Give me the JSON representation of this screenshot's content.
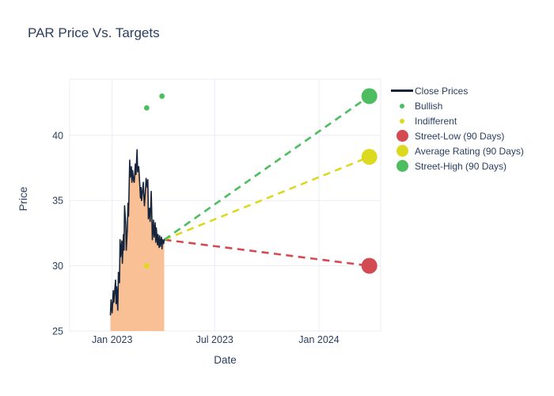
{
  "title": "PAR Price Vs. Targets",
  "colors": {
    "text": "#2a3f5f",
    "grid": "#e9edf5",
    "close_line": "#16243c",
    "close_fill": "#f9c096",
    "bullish": "#4dbd5f",
    "indifferent": "#dcd921",
    "street_low": "#d24a52",
    "average_rating": "#dcd921",
    "street_high": "#4dbd5f",
    "background": "#ffffff"
  },
  "legend": {
    "items": [
      {
        "label": "Close Prices",
        "swatch": "line",
        "color": "#16243c"
      },
      {
        "label": "Bullish",
        "swatch": "dot-small",
        "color": "#4dbd5f"
      },
      {
        "label": "Indifferent",
        "swatch": "dot-small",
        "color": "#dcd921"
      },
      {
        "label": "Street-Low (90 Days)",
        "swatch": "dot-large",
        "color": "#d24a52"
      },
      {
        "label": "Average Rating (90 Days)",
        "swatch": "dot-large",
        "color": "#dcd921"
      },
      {
        "label": "Street-High (90 Days)",
        "swatch": "dot-large",
        "color": "#4dbd5f"
      }
    ]
  },
  "chart_data": {
    "type": "line",
    "title": "PAR Price Vs. Targets",
    "xlabel": "Date",
    "ylabel": "Price",
    "grid": true,
    "legend_position": "right",
    "x_domain": [
      "2022-10-18",
      "2024-04-19"
    ],
    "y_domain": [
      25,
      44.3
    ],
    "y_ticks": [
      25,
      30,
      35,
      40
    ],
    "x_ticks": [
      {
        "date": "2023-01-01",
        "label": "Jan 2023"
      },
      {
        "date": "2023-07-01",
        "label": "Jul 2023"
      },
      {
        "date": "2024-01-01",
        "label": "Jan 2024"
      }
    ],
    "close_prices": {
      "name": "Close Prices",
      "dates": [
        "2022-12-29",
        "2022-12-30",
        "2023-01-01",
        "2023-01-03",
        "2023-01-04",
        "2023-01-07",
        "2023-01-08",
        "2023-01-09",
        "2023-01-11",
        "2023-01-12",
        "2023-01-14",
        "2023-01-15",
        "2023-01-16",
        "2023-01-18",
        "2023-01-19",
        "2023-01-21",
        "2023-01-22",
        "2023-01-23",
        "2023-01-25",
        "2023-01-26",
        "2023-01-28",
        "2023-01-29",
        "2023-01-30",
        "2023-02-01",
        "2023-02-02",
        "2023-02-04",
        "2023-02-05",
        "2023-02-06",
        "2023-02-08",
        "2023-02-09",
        "2023-02-11",
        "2023-02-12",
        "2023-02-14",
        "2023-02-15",
        "2023-02-17",
        "2023-02-18",
        "2023-02-20",
        "2023-02-21",
        "2023-02-22",
        "2023-02-25",
        "2023-02-26",
        "2023-02-27",
        "2023-03-01",
        "2023-03-02",
        "2023-03-04",
        "2023-03-05",
        "2023-03-06",
        "2023-03-08",
        "2023-03-09",
        "2023-03-11",
        "2023-03-12",
        "2023-03-13",
        "2023-03-15",
        "2023-03-16",
        "2023-03-18",
        "2023-03-19",
        "2023-03-20",
        "2023-03-22",
        "2023-03-23",
        "2023-03-25",
        "2023-03-26",
        "2023-03-27",
        "2023-03-29",
        "2023-03-30",
        "2023-03-31",
        "2023-04-02",
        "2023-04-03"
      ],
      "prices": [
        26.2,
        27.4,
        26.4,
        28.1,
        27.2,
        28.9,
        27.1,
        28.4,
        26.6,
        29.5,
        28.7,
        32.0,
        30.7,
        31.9,
        30.2,
        32.4,
        31.2,
        34.6,
        33.2,
        31.2,
        33.0,
        34.8,
        33.8,
        38.1,
        36.8,
        37.6,
        36.4,
        37.3,
        36.5,
        36.4,
        37.8,
        37.0,
        38.9,
        37.2,
        37.6,
        36.9,
        35.2,
        36.0,
        35.0,
        36.4,
        35.3,
        34.6,
        35.9,
        36.7,
        36.0,
        36.6,
        33.6,
        34.4,
        33.4,
        35.7,
        33.9,
        32.0,
        33.5,
        32.2,
        33.3,
        31.8,
        32.9,
        31.6,
        32.4,
        31.4,
        32.3,
        31.5,
        32.2,
        31.3,
        32.0,
        31.7,
        32.05
      ]
    },
    "sentiment_markers": [
      {
        "name": "Bullish",
        "color": "#4dbd5f",
        "points": [
          {
            "date": "2023-03-03",
            "price": 42.1
          },
          {
            "date": "2023-03-30",
            "price": 43.0
          }
        ]
      },
      {
        "name": "Indifferent",
        "color": "#dcd921",
        "points": [
          {
            "date": "2023-03-03",
            "price": 30.0
          }
        ]
      }
    ],
    "targets": [
      {
        "name": "Street-Low (90 Days)",
        "color": "#d24a52",
        "from": {
          "date": "2023-04-03",
          "price": 32.0
        },
        "to": {
          "date": "2024-03-30",
          "price": 30.0
        }
      },
      {
        "name": "Average Rating (90 Days)",
        "color": "#dcd921",
        "from": {
          "date": "2023-04-03",
          "price": 32.0
        },
        "to": {
          "date": "2024-03-30",
          "price": 38.35
        }
      },
      {
        "name": "Street-High (90 Days)",
        "color": "#4dbd5f",
        "from": {
          "date": "2023-04-03",
          "price": 32.0
        },
        "to": {
          "date": "2024-03-30",
          "price": 43.0
        }
      }
    ]
  }
}
